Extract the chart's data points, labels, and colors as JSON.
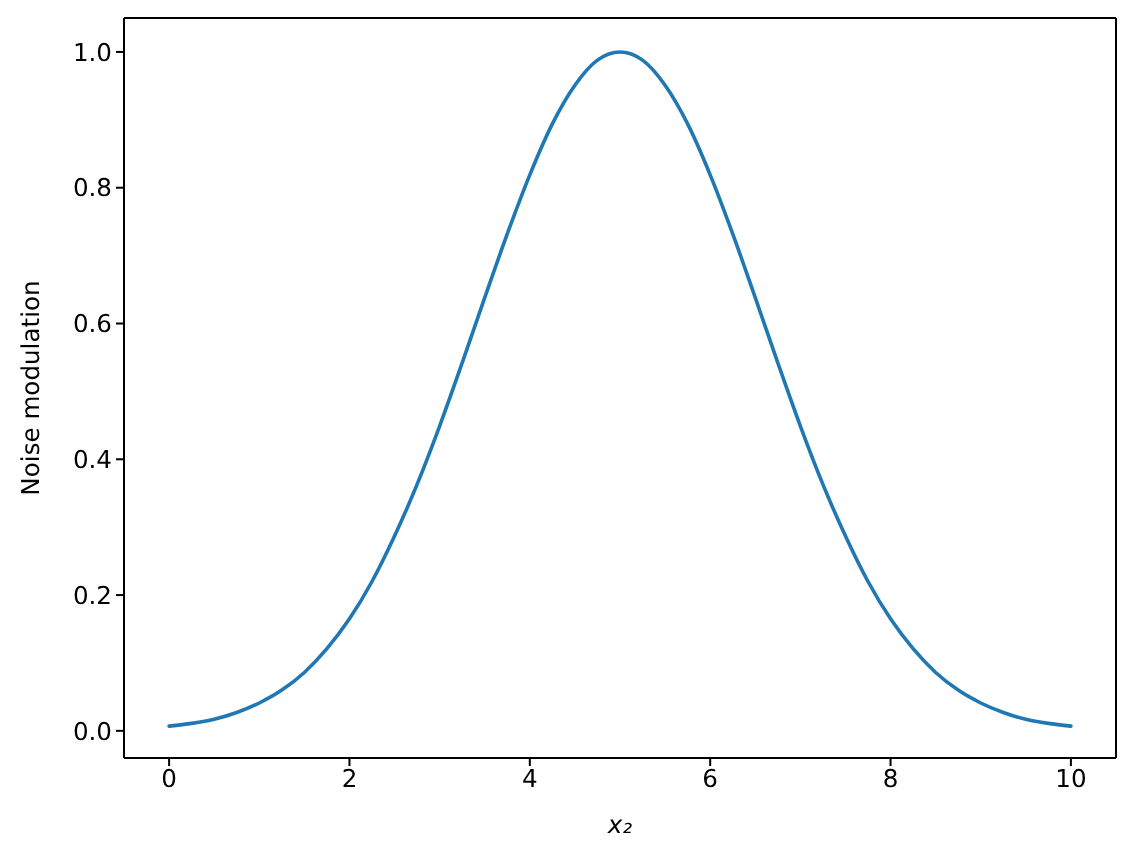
{
  "chart_data": {
    "type": "line",
    "xlabel": "x₂",
    "ylabel": "Noise modulation",
    "x": [
      0,
      0.25,
      0.5,
      0.75,
      1,
      1.25,
      1.5,
      1.75,
      2,
      2.25,
      2.5,
      2.75,
      3,
      3.25,
      3.5,
      3.75,
      4,
      4.25,
      4.5,
      4.75,
      5,
      5.25,
      5.5,
      5.75,
      6,
      6.25,
      6.5,
      6.75,
      7,
      7.25,
      7.5,
      7.75,
      8,
      8.25,
      8.5,
      8.75,
      9,
      9.25,
      9.5,
      9.75,
      10
    ],
    "values": [
      0.007,
      0.011,
      0.017,
      0.027,
      0.041,
      0.06,
      0.086,
      0.121,
      0.165,
      0.22,
      0.287,
      0.363,
      0.449,
      0.542,
      0.638,
      0.732,
      0.819,
      0.894,
      0.951,
      0.988,
      1,
      0.988,
      0.951,
      0.894,
      0.819,
      0.732,
      0.638,
      0.542,
      0.449,
      0.363,
      0.287,
      0.22,
      0.165,
      0.121,
      0.086,
      0.06,
      0.041,
      0.027,
      0.017,
      0.011,
      0.007
    ],
    "color": "#1f77b4",
    "xlim": [
      -0.5,
      10.5
    ],
    "xticks": [
      0,
      2,
      4,
      6,
      8,
      10
    ],
    "ylim": [
      -0.04,
      1.05
    ],
    "yticks": [
      {
        "value": 0,
        "label": "0.0"
      },
      0.2,
      0.4,
      0.6,
      0.8,
      {
        "value": 1,
        "label": "1.0"
      }
    ]
  }
}
